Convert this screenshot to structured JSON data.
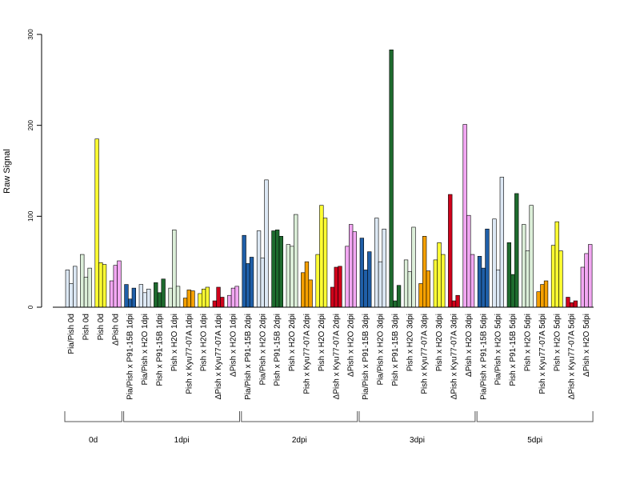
{
  "chart_data": {
    "type": "bar",
    "title": "",
    "xlabel": "",
    "ylabel": "Raw Signal",
    "ylim": [
      0,
      300
    ],
    "yticks": [
      0,
      100,
      200,
      300
    ],
    "grid": false,
    "legend": "none",
    "groups": [
      {
        "label": "0d",
        "categories": [
          {
            "name": "Pia/Pish 0d",
            "color": "#DCE8F4",
            "values": [
              41,
              26,
              45
            ]
          },
          {
            "name": "Pish 0d",
            "color": "#DCEFD9",
            "values": [
              58,
              33,
              43
            ]
          },
          {
            "name": "Pish 0d",
            "color": "#FFFF33",
            "values": [
              185,
              49,
              47
            ]
          },
          {
            "name": "ΔPish 0d",
            "color": "#F2A7F2",
            "values": [
              29,
              46,
              51
            ]
          }
        ]
      },
      {
        "label": "1dpi",
        "categories": [
          {
            "name": "Pia/Pish x P91-15B 1dpi",
            "color": "#1F5FA8",
            "values": [
              25,
              9,
              21
            ]
          },
          {
            "name": "Pia/Pish x H2O 1dpi",
            "color": "#DCE8F4",
            "values": [
              25,
              16,
              20
            ]
          },
          {
            "name": "Pish x P91-15B 1dpi",
            "color": "#1E6B2E",
            "values": [
              27,
              16,
              31
            ]
          },
          {
            "name": "Pish x H2O 1dpi",
            "color": "#DCEFD9",
            "values": [
              21,
              85,
              23
            ]
          },
          {
            "name": "Pish x Kyu77-07A 1dpi",
            "color": "#F5A000",
            "values": [
              10,
              19,
              18
            ]
          },
          {
            "name": "Pish x H2O 1dpi",
            "color": "#FFFF33",
            "values": [
              15,
              20,
              22
            ]
          },
          {
            "name": "ΔPish x Kyu77-07A 1dpi",
            "color": "#D0021B",
            "values": [
              7,
              22,
              11
            ]
          },
          {
            "name": "ΔPish x H2O 1dpi",
            "color": "#F2A7F2",
            "values": [
              13,
              21,
              23
            ]
          }
        ]
      },
      {
        "label": "2dpi",
        "categories": [
          {
            "name": "Pia/Pish x P91-15B 2dpi",
            "color": "#1F5FA8",
            "values": [
              79,
              48,
              55
            ]
          },
          {
            "name": "Pia/Pish x H2O 2dpi",
            "color": "#DCE8F4",
            "values": [
              84,
              54,
              140
            ]
          },
          {
            "name": "Pish x P91-15B 2dpi",
            "color": "#1E6B2E",
            "values": [
              84,
              85,
              78
            ]
          },
          {
            "name": "Pish x H2O 2dpi",
            "color": "#DCEFD9",
            "values": [
              69,
              67,
              102
            ]
          },
          {
            "name": "Pish x Kyu77-07A 2dpi",
            "color": "#F5A000",
            "values": [
              38,
              50,
              30
            ]
          },
          {
            "name": "Pish x H2O 2dpi",
            "color": "#FFFF33",
            "values": [
              58,
              112,
              98
            ]
          },
          {
            "name": "ΔPish x Kyu77-07A 2dpi",
            "color": "#D0021B",
            "values": [
              22,
              44,
              45
            ]
          },
          {
            "name": "ΔPish x H2O 2dpi",
            "color": "#F2A7F2",
            "values": [
              67,
              91,
              83
            ]
          }
        ]
      },
      {
        "label": "3dpi",
        "categories": [
          {
            "name": "Pia/Pish x P91-15B 3dpi",
            "color": "#1F5FA8",
            "values": [
              76,
              41,
              61
            ]
          },
          {
            "name": "Pia/Pish x H2O 3dpi",
            "color": "#DCE8F4",
            "values": [
              98,
              50,
              86
            ]
          },
          {
            "name": "Pish x P91-15B 3dpi",
            "color": "#1E6B2E",
            "values": [
              283,
              7,
              24
            ]
          },
          {
            "name": "Pish x H2O 3dpi",
            "color": "#DCEFD9",
            "values": [
              52,
              39,
              88
            ]
          },
          {
            "name": "Pish x Kyu77-07A 3dpi",
            "color": "#F5A000",
            "values": [
              26,
              78,
              40
            ]
          },
          {
            "name": "Pish x H2O 3dpi",
            "color": "#FFFF33",
            "values": [
              52,
              71,
              58
            ]
          },
          {
            "name": "ΔPish x Kyu77-07A 3dpi",
            "color": "#D0021B",
            "values": [
              124,
              7,
              13
            ]
          },
          {
            "name": "ΔPish x H2O 3dpi",
            "color": "#F2A7F2",
            "values": [
              201,
              101,
              58
            ]
          }
        ]
      },
      {
        "label": "5dpi",
        "categories": [
          {
            "name": "Pia/Pish x P91-15B 5dpi",
            "color": "#1F5FA8",
            "values": [
              56,
              43,
              86
            ]
          },
          {
            "name": "Pia/Pish x H2O 5dpi",
            "color": "#DCE8F4",
            "values": [
              97,
              41,
              143
            ]
          },
          {
            "name": "Pish x P91-15B 5dpi",
            "color": "#1E6B2E",
            "values": [
              71,
              36,
              125
            ]
          },
          {
            "name": "Pish x H2O 5dpi",
            "color": "#DCEFD9",
            "values": [
              91,
              62,
              112
            ]
          },
          {
            "name": "Pish x Kyu77-07A 5dpi",
            "color": "#F5A000",
            "values": [
              17,
              25,
              29
            ]
          },
          {
            "name": "Pish x H2O 5dpi",
            "color": "#FFFF33",
            "values": [
              68,
              94,
              62
            ]
          },
          {
            "name": "ΔPish x Kyu77-07A 5dpi",
            "color": "#D0021B",
            "values": [
              11,
              5,
              7
            ]
          },
          {
            "name": "ΔPish x H2O 5dpi",
            "color": "#F2A7F2",
            "values": [
              44,
              59,
              69
            ]
          }
        ]
      }
    ]
  }
}
